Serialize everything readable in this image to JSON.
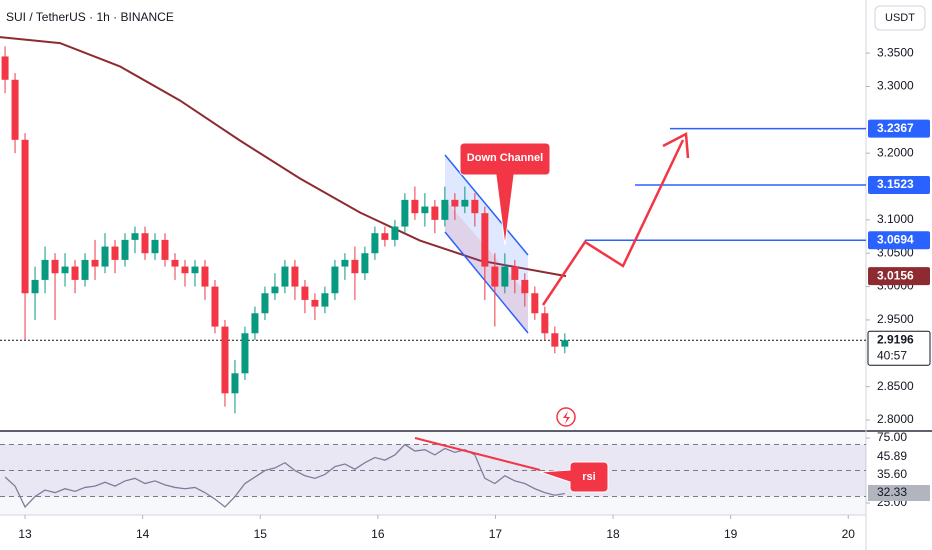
{
  "chart_data": {
    "type": "candlestick",
    "title": "SUI / TetherUS · 1h · BINANCE",
    "currency_button": "USDT",
    "x": [
      12.83,
      12.915,
      13.0,
      13.085,
      13.17,
      13.255,
      13.34,
      13.425,
      13.51,
      13.595,
      13.68,
      13.765,
      13.85,
      13.935,
      14.02,
      14.105,
      14.19,
      14.275,
      14.36,
      14.445,
      14.53,
      14.615,
      14.7,
      14.785,
      14.87,
      14.955,
      15.04,
      15.125,
      15.21,
      15.295,
      15.38,
      15.465,
      15.55,
      15.635,
      15.72,
      15.805,
      15.89,
      15.975,
      16.06,
      16.145,
      16.23,
      16.315,
      16.4,
      16.485,
      16.57,
      16.655,
      16.74,
      16.825,
      16.91,
      16.995,
      17.08,
      17.165,
      17.25,
      17.335,
      17.42,
      17.505,
      17.59
    ],
    "open": [
      3.345,
      3.31,
      3.22,
      2.99,
      3.01,
      3.04,
      3.02,
      3.03,
      3.01,
      3.04,
      3.03,
      3.06,
      3.04,
      3.07,
      3.08,
      3.05,
      3.07,
      3.04,
      3.03,
      3.02,
      3.03,
      3.0,
      2.94,
      2.84,
      2.87,
      2.93,
      2.96,
      2.99,
      3.0,
      3.03,
      3.0,
      2.98,
      2.97,
      2.99,
      3.03,
      3.04,
      3.02,
      3.05,
      3.08,
      3.07,
      3.09,
      3.13,
      3.11,
      3.12,
      3.1,
      3.13,
      3.12,
      3.13,
      3.11,
      3.03,
      3.0,
      3.03,
      3.01,
      2.99,
      2.96,
      2.93,
      2.91
    ],
    "high": [
      3.36,
      3.32,
      3.23,
      3.03,
      3.06,
      3.05,
      3.05,
      3.04,
      3.05,
      3.07,
      3.08,
      3.07,
      3.08,
      3.09,
      3.09,
      3.08,
      3.08,
      3.05,
      3.04,
      3.04,
      3.04,
      3.01,
      2.95,
      2.89,
      2.94,
      2.97,
      3.0,
      3.02,
      3.04,
      3.04,
      3.01,
      2.99,
      3.0,
      3.04,
      3.05,
      3.06,
      3.06,
      3.09,
      3.09,
      3.1,
      3.14,
      3.15,
      3.14,
      3.13,
      3.15,
      3.14,
      3.15,
      3.14,
      3.12,
      3.05,
      3.05,
      3.04,
      3.02,
      3.0,
      2.97,
      2.94,
      2.93
    ],
    "low": [
      3.29,
      3.2,
      2.92,
      2.95,
      2.99,
      2.95,
      3.0,
      2.99,
      3.0,
      3.01,
      3.02,
      3.02,
      3.03,
      3.05,
      3.04,
      3.04,
      3.03,
      3.01,
      3.0,
      3.0,
      2.98,
      2.93,
      2.82,
      2.81,
      2.86,
      2.92,
      2.95,
      2.98,
      2.99,
      2.98,
      2.96,
      2.95,
      2.96,
      2.98,
      3.01,
      2.98,
      3.01,
      3.04,
      3.06,
      3.06,
      3.08,
      3.1,
      3.09,
      3.08,
      3.09,
      3.1,
      3.11,
      3.09,
      2.98,
      2.94,
      2.99,
      2.99,
      2.97,
      2.95,
      2.92,
      2.9,
      2.9
    ],
    "close": [
      3.31,
      3.22,
      2.99,
      3.01,
      3.04,
      3.02,
      3.03,
      3.01,
      3.04,
      3.03,
      3.06,
      3.04,
      3.07,
      3.08,
      3.05,
      3.07,
      3.04,
      3.03,
      3.02,
      3.03,
      3.0,
      2.94,
      2.84,
      2.87,
      2.93,
      2.96,
      2.99,
      3.0,
      3.03,
      3.0,
      2.98,
      2.97,
      2.99,
      3.03,
      3.04,
      3.02,
      3.05,
      3.08,
      3.07,
      3.09,
      3.13,
      3.11,
      3.12,
      3.1,
      3.13,
      3.12,
      3.13,
      3.11,
      3.03,
      3.0,
      3.03,
      3.01,
      2.99,
      2.96,
      2.93,
      2.91,
      2.9196
    ],
    "up_color": "#089981",
    "down_color": "#f23645",
    "ma": {
      "color": "#8e2b31",
      "x": [
        12.787,
        13.297,
        13.807,
        14.317,
        14.827,
        15.338,
        15.848,
        16.358,
        16.868,
        17.6
      ],
      "values": [
        3.374,
        3.365,
        3.33,
        3.279,
        3.219,
        3.162,
        3.111,
        3.069,
        3.039,
        3.0156
      ]
    },
    "levels": {
      "color": "#2962ff",
      "values": [
        3.2367,
        3.1523,
        3.0694
      ]
    },
    "ma_last": 3.0156,
    "last_price": 2.9196,
    "countdown": "40:57",
    "xlim": [
      12.787,
      20.151
    ],
    "xticks": [
      13,
      14,
      15,
      16,
      17,
      18,
      19,
      20
    ],
    "ylim": [
      2.7835,
      3.4296
    ],
    "yticks": [
      {
        "value": 2.8,
        "label": "2.8000"
      },
      {
        "value": 2.85,
        "label": "2.8500"
      },
      {
        "value": 2.95,
        "label": "2.9500"
      },
      {
        "value": 3.0,
        "label": "3.0000"
      },
      {
        "value": 3.05,
        "label": "3.0500"
      },
      {
        "value": 3.1,
        "label": "3.1000"
      },
      {
        "value": 3.2,
        "label": "3.2000"
      },
      {
        "value": 3.3,
        "label": "3.3000"
      },
      {
        "value": 3.35,
        "label": "3.3500"
      }
    ],
    "annotations": [
      "Down Channel",
      "rsi"
    ],
    "rsi": {
      "color": "#7e7e9a",
      "values": [
        45,
        38,
        22,
        30,
        35,
        33,
        36,
        34,
        37,
        38,
        41,
        38,
        42,
        44,
        40,
        42,
        39,
        37,
        36,
        37,
        33,
        28,
        22,
        30,
        40,
        45,
        50,
        52,
        56,
        50,
        46,
        44,
        47,
        53,
        55,
        51,
        56,
        60,
        58,
        62,
        70,
        65,
        66,
        62,
        67,
        64,
        66,
        62,
        44,
        40,
        46,
        42,
        40,
        36,
        33,
        31,
        32.33
      ],
      "ylim": [
        15.8,
        80.4
      ],
      "yticks": [
        {
          "value": 75,
          "label": "75.00"
        },
        {
          "value": 25,
          "label": "25.00"
        }
      ],
      "bands": [
        70,
        50,
        30
      ],
      "labels": [
        45.89,
        {
          "value": 35.6,
          "label": "35.60"
        },
        32.33
      ]
    }
  }
}
